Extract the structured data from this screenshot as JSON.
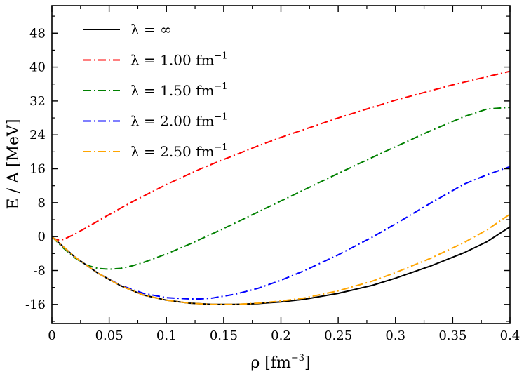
{
  "chart_data": {
    "type": "line",
    "title": "",
    "xlabel": "ρ [fm",
    "xlabel_sup": "−3",
    "xlabel_end": "]",
    "ylabel": "E / A [MeV]",
    "xlim": [
      0,
      0.4
    ],
    "ylim": [
      -20.5,
      54.5
    ],
    "xticks": [
      0,
      0.05,
      0.1,
      0.15,
      0.2,
      0.25,
      0.3,
      0.35,
      0.4
    ],
    "xtick_labels": [
      "0",
      "0.05",
      "0.1",
      "0.15",
      "0.2",
      "0.25",
      "0.3",
      "0.35",
      "0.4"
    ],
    "yticks": [
      -16,
      -8,
      0,
      8,
      16,
      24,
      32,
      40,
      48
    ],
    "ytick_labels": [
      "-16",
      "-8",
      "0",
      "8",
      "16",
      "24",
      "32",
      "40",
      "48"
    ],
    "grid": false,
    "legend_position": "top-left",
    "series": [
      {
        "name": "λ = ∞",
        "label_main": "λ = ∞",
        "label_sup": "",
        "color": "#000000",
        "dash": "solid",
        "x": [
          0.0,
          0.02,
          0.04,
          0.06,
          0.08,
          0.1,
          0.12,
          0.14,
          0.16,
          0.18,
          0.2,
          0.22,
          0.25,
          0.28,
          0.3,
          0.33,
          0.36,
          0.38,
          0.4
        ],
        "values": [
          0.0,
          -4.8,
          -8.6,
          -11.6,
          -13.8,
          -15.0,
          -15.7,
          -16.0,
          -16.0,
          -15.8,
          -15.4,
          -14.8,
          -13.4,
          -11.5,
          -9.8,
          -7.0,
          -3.8,
          -1.2,
          2.3
        ]
      },
      {
        "name": "λ = 1.00 fm−1",
        "label_main": "λ = 1.00 fm",
        "label_sup": "−1",
        "color": "#ff0000",
        "dash": "dashdot",
        "x": [
          0.0,
          0.005,
          0.01,
          0.02,
          0.03,
          0.05,
          0.07,
          0.1,
          0.13,
          0.15,
          0.18,
          0.2,
          0.25,
          0.3,
          0.35,
          0.4
        ],
        "values": [
          -0.2,
          -0.8,
          -0.7,
          0.6,
          2.1,
          5.2,
          8.2,
          12.3,
          16.0,
          18.2,
          21.4,
          23.4,
          28.0,
          32.2,
          35.8,
          39.0
        ]
      },
      {
        "name": "λ = 1.50 fm−1",
        "label_main": "λ = 1.50 fm",
        "label_sup": "−1",
        "color": "#008000",
        "dash": "dashdot",
        "x": [
          0.0,
          0.01,
          0.02,
          0.03,
          0.04,
          0.05,
          0.06,
          0.07,
          0.08,
          0.1,
          0.12,
          0.15,
          0.18,
          0.2,
          0.22,
          0.25,
          0.28,
          0.3,
          0.33,
          0.36,
          0.38,
          0.4
        ],
        "values": [
          0.0,
          -2.7,
          -5.0,
          -6.7,
          -7.5,
          -7.7,
          -7.5,
          -6.9,
          -6.1,
          -4.1,
          -1.8,
          1.9,
          5.8,
          8.4,
          11.0,
          14.9,
          18.7,
          21.2,
          24.9,
          28.3,
          30.1,
          30.5
        ]
      },
      {
        "name": "λ = 2.00 fm−1",
        "label_main": "λ = 2.00 fm",
        "label_sup": "−1",
        "color": "#0000ff",
        "dash": "dashdot",
        "x": [
          0.0,
          0.02,
          0.04,
          0.06,
          0.08,
          0.1,
          0.12,
          0.13,
          0.14,
          0.16,
          0.18,
          0.2,
          0.22,
          0.25,
          0.28,
          0.3,
          0.33,
          0.36,
          0.38,
          0.4
        ],
        "values": [
          0.0,
          -4.8,
          -8.6,
          -11.5,
          -13.4,
          -14.4,
          -14.7,
          -14.7,
          -14.5,
          -13.6,
          -12.2,
          -10.3,
          -8.1,
          -4.3,
          -0.1,
          3.0,
          7.8,
          12.4,
          14.6,
          16.5
        ]
      },
      {
        "name": "λ = 2.50 fm−1",
        "label_main": "λ = 2.50 fm",
        "label_sup": "−1",
        "color": "#ffa500",
        "dash": "dashdot",
        "x": [
          0.0,
          0.02,
          0.04,
          0.06,
          0.08,
          0.1,
          0.12,
          0.14,
          0.16,
          0.18,
          0.2,
          0.22,
          0.25,
          0.28,
          0.3,
          0.33,
          0.36,
          0.38,
          0.4
        ],
        "values": [
          0.0,
          -4.8,
          -8.6,
          -11.6,
          -13.8,
          -15.0,
          -15.7,
          -16.0,
          -16.0,
          -15.7,
          -15.2,
          -14.5,
          -12.8,
          -10.5,
          -8.5,
          -5.2,
          -1.4,
          1.6,
          5.3
        ]
      }
    ]
  }
}
